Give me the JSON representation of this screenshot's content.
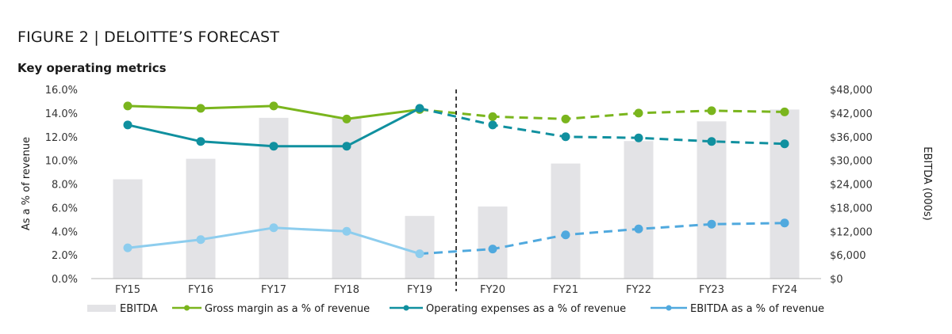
{
  "figure_title": "FIGURE 2 | DELOITTE’S FORECAST",
  "chart_data": {
    "type": "bar+line",
    "title": "Key operating metrics",
    "categories": [
      "FY15",
      "FY16",
      "FY17",
      "FY18",
      "FY19",
      "FY20",
      "FY21",
      "FY22",
      "FY23",
      "FY24"
    ],
    "ylabel": "As a % of revenue",
    "y2label": "EBITDA (000s)",
    "ylim": [
      0,
      16
    ],
    "y2lim": [
      0,
      48000
    ],
    "y_ticks": [
      "0.0%",
      "2.0%",
      "4.0%",
      "6.0%",
      "8.0%",
      "10.0%",
      "12.0%",
      "14.0%",
      "16.0%"
    ],
    "y2_ticks": [
      "$0",
      "$6,000",
      "$12,000",
      "$18,000",
      "$24,000",
      "$30,000",
      "$36,000",
      "$42,000",
      "$48,000"
    ],
    "forecast_divider_after": "FY19",
    "bars": {
      "name": "EBITDA",
      "color": "#e3e3e6",
      "values": [
        25200,
        30400,
        40800,
        40800,
        15900,
        18300,
        29200,
        34900,
        39900,
        42900
      ]
    },
    "series": [
      {
        "name": "Gross margin as a % of revenue",
        "color": "#7ab51d",
        "values": [
          14.6,
          14.4,
          14.6,
          13.5,
          14.3,
          13.7,
          13.5,
          14.0,
          14.2,
          14.1
        ]
      },
      {
        "name": "Operating expenses as a % of revenue",
        "color": "#10909f",
        "values": [
          13.0,
          11.6,
          11.2,
          11.2,
          14.4,
          13.0,
          12.0,
          11.9,
          11.6,
          11.4
        ]
      },
      {
        "name": "EBITDA as a % of revenue",
        "color": "#8dcdee",
        "forecast_color": "#50a9de",
        "values": [
          2.6,
          3.3,
          4.3,
          4.0,
          2.1,
          2.5,
          3.7,
          4.2,
          4.6,
          4.7
        ]
      }
    ],
    "legend_position": "bottom"
  }
}
